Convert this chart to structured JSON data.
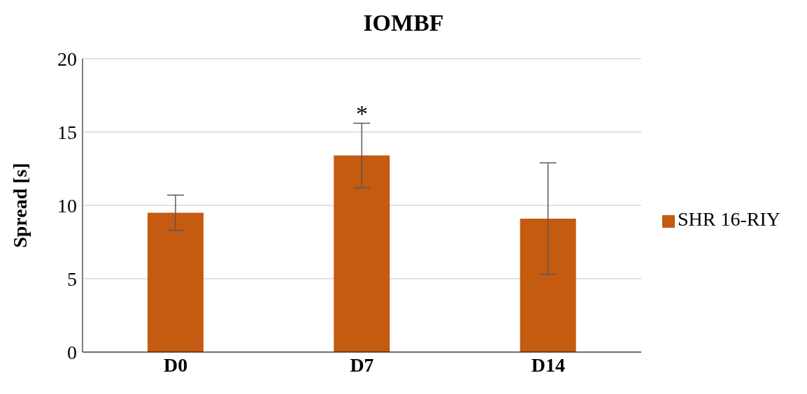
{
  "chart_data": {
    "type": "bar",
    "title": "IOMBF",
    "ylabel": "Spread [s]",
    "categories": [
      "D0",
      "D7",
      "D14"
    ],
    "series": [
      {
        "name": "SHR 16-RIY",
        "color": "#c55a11",
        "values": [
          9.5,
          13.4,
          9.1
        ],
        "errors": [
          1.2,
          2.2,
          3.8
        ]
      }
    ],
    "ylim": [
      0,
      20
    ],
    "yticks": [
      0,
      5,
      10,
      15,
      20
    ],
    "grid": "y",
    "legend": "right",
    "annotations": [
      {
        "text": "*",
        "x": "D7",
        "y": 15.6
      }
    ]
  }
}
